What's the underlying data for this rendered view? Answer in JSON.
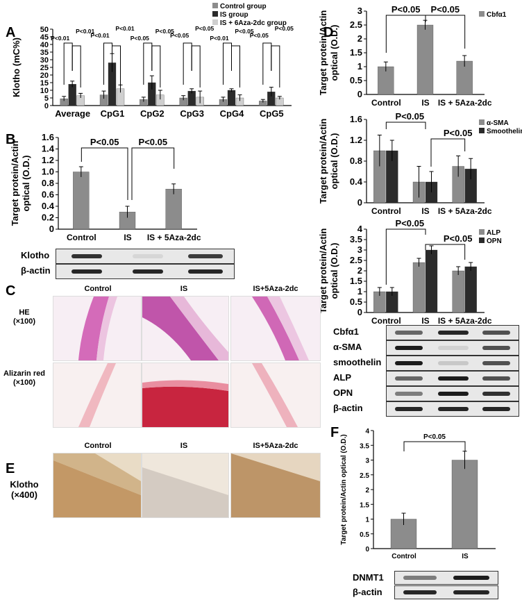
{
  "panel_letters": {
    "a": "A",
    "b": "B",
    "c": "C",
    "d": "D",
    "e": "E",
    "f": "F"
  },
  "chart_data": [
    {
      "id": "A",
      "type": "bar",
      "ylabel": "Klotho (mC%)",
      "ylim": [
        0,
        50
      ],
      "yticks": [
        0,
        5,
        10,
        15,
        20,
        25,
        30,
        35,
        40,
        45,
        50
      ],
      "categories": [
        "Average",
        "CpG1",
        "CpG2",
        "CpG3",
        "CpG4",
        "CpG5"
      ],
      "series": [
        {
          "name": "Control group",
          "color": "#8c8c8c",
          "values": [
            4.5,
            7,
            4,
            5,
            4,
            3
          ],
          "errors": [
            1.5,
            2.5,
            1.5,
            1.5,
            1.5,
            1
          ]
        },
        {
          "name": "IS group",
          "color": "#2b2b2b",
          "values": [
            14,
            28,
            15,
            9.5,
            10,
            9
          ],
          "errors": [
            2,
            6,
            4.5,
            1.5,
            1,
            3
          ]
        },
        {
          "name": "IS + 6Aza-2dc group",
          "color": "#cfcfcf",
          "values": [
            6.5,
            11,
            7,
            5.5,
            5,
            5
          ],
          "errors": [
            1.5,
            2.5,
            3,
            4,
            2,
            1
          ]
        }
      ],
      "annotations": [
        [
          "P<0.01",
          "P<0.01"
        ],
        [
          "P<0.01",
          "P<0.01"
        ],
        [
          "P<0.05",
          "P<0.05"
        ],
        [
          "P<0.05",
          "P<0.05"
        ],
        [
          "P<0.01",
          "P<0.05"
        ],
        [
          "P<0.05",
          "P<0.05"
        ]
      ],
      "legend_position": "top-right"
    },
    {
      "id": "B",
      "type": "bar",
      "ylabel": "Target protein/Actin optical (O.D.)",
      "ylim": [
        0,
        1.6
      ],
      "yticks": [
        "0",
        "0.2",
        "0.4",
        "0.6",
        "0.8",
        "1.0",
        "1.2",
        "1.4",
        "1.6"
      ],
      "categories": [
        "Control",
        "IS",
        "IS + 5Aza-2dc"
      ],
      "series": [
        {
          "name": "",
          "color": "#8c8c8c",
          "values": [
            1.0,
            0.3,
            0.7
          ],
          "errors": [
            0.09,
            0.1,
            0.09
          ]
        }
      ],
      "annotations": [
        "P<0.05",
        "P<0.05"
      ]
    },
    {
      "id": "D1",
      "type": "bar",
      "ylabel": "Target protein/Actin optical (O.D.)",
      "ylim": [
        0,
        3
      ],
      "yticks": [
        "0",
        "0.5",
        "1",
        "1.5",
        "2",
        "2.5",
        "3"
      ],
      "categories": [
        "Control",
        "IS",
        "IS + 5Aza-2dc"
      ],
      "series": [
        {
          "name": "Cbfα1",
          "color": "#8c8c8c",
          "values": [
            1.0,
            2.5,
            1.2
          ],
          "errors": [
            0.17,
            0.17,
            0.2
          ]
        }
      ],
      "annotations": [
        "P<0.05",
        "P<0.05"
      ],
      "legend_position": "top-right"
    },
    {
      "id": "D2",
      "type": "bar",
      "ylabel": "Target protein/Actin optical (O.D.)",
      "ylim": [
        0,
        1.6
      ],
      "yticks": [
        "0",
        "0.4",
        "0.8",
        "1.2",
        "1.6"
      ],
      "categories": [
        "Control",
        "IS",
        "IS + 5Aza-2dc"
      ],
      "series": [
        {
          "name": "α-SMA",
          "color": "#8c8c8c",
          "values": [
            1.0,
            0.4,
            0.7
          ],
          "errors": [
            0.3,
            0.3,
            0.2
          ]
        },
        {
          "name": "Smoothelin",
          "color": "#2b2b2b",
          "values": [
            1.0,
            0.4,
            0.65
          ],
          "errors": [
            0.2,
            0.2,
            0.2
          ]
        }
      ],
      "annotations": [
        "P<0.05",
        "P<0.05"
      ],
      "legend_position": "top-right"
    },
    {
      "id": "D3",
      "type": "bar",
      "ylabel": "Target protein/Actin optical (O.D.)",
      "ylim": [
        0,
        4
      ],
      "yticks": [
        "0",
        "0.5",
        "1",
        "1.5",
        "2",
        "2.5",
        "3",
        "3.5",
        "4"
      ],
      "categories": [
        "Control",
        "IS",
        "IS + 5Aza-2dc"
      ],
      "series": [
        {
          "name": "ALP",
          "color": "#8c8c8c",
          "values": [
            1.0,
            2.4,
            2.0
          ],
          "errors": [
            0.2,
            0.2,
            0.2
          ]
        },
        {
          "name": "OPN",
          "color": "#2b2b2b",
          "values": [
            1.0,
            3.0,
            2.2
          ],
          "errors": [
            0.2,
            0.2,
            0.2
          ]
        }
      ],
      "annotations": [
        "P<0.05",
        "P<0.05"
      ],
      "legend_position": "top-right"
    },
    {
      "id": "F",
      "type": "bar",
      "ylabel": "Target protein/Actin optical (O.D.)",
      "ylim": [
        0,
        4
      ],
      "yticks": [
        "0",
        "0.5",
        "1",
        "1.5",
        "2",
        "2.5",
        "3",
        "3.5",
        "4"
      ],
      "categories": [
        "Control",
        "IS"
      ],
      "series": [
        {
          "name": "",
          "color": "#8c8c8c",
          "values": [
            1.0,
            3.0
          ],
          "errors": [
            0.2,
            0.3
          ]
        }
      ],
      "annotations": [
        "P<0.05"
      ]
    }
  ],
  "western_blots": {
    "B": {
      "labels": [
        "Klotho",
        "β-actin"
      ],
      "intensities": [
        [
          0.85,
          0.08,
          0.8
        ],
        [
          0.9,
          0.9,
          0.9
        ]
      ]
    },
    "D": {
      "labels": [
        "Cbfα1",
        "α-SMA",
        "smoothelin",
        "ALP",
        "OPN",
        "β-actin"
      ],
      "intensities": [
        [
          0.6,
          0.9,
          0.7
        ],
        [
          0.95,
          0.1,
          0.7
        ],
        [
          0.95,
          0.15,
          0.7
        ],
        [
          0.6,
          0.95,
          0.7
        ],
        [
          0.5,
          0.95,
          0.85
        ],
        [
          0.9,
          0.9,
          0.9
        ]
      ]
    },
    "F": {
      "labels": [
        "DNMT1",
        "β-actin"
      ],
      "intensities": [
        [
          0.5,
          0.95
        ],
        [
          0.9,
          0.9
        ]
      ]
    }
  },
  "histology_C": {
    "columns": [
      "Control",
      "IS",
      "IS+5Aza-2dc"
    ],
    "rows": [
      {
        "label": "HE",
        "mag": "(×100)"
      },
      {
        "label": "Alizarin red",
        "mag": "(×100)"
      }
    ]
  },
  "histology_E": {
    "columns": [
      "Control",
      "IS",
      "IS+5Aza-2dc"
    ],
    "row": {
      "label": "Klotho",
      "mag": "(×400)"
    }
  }
}
